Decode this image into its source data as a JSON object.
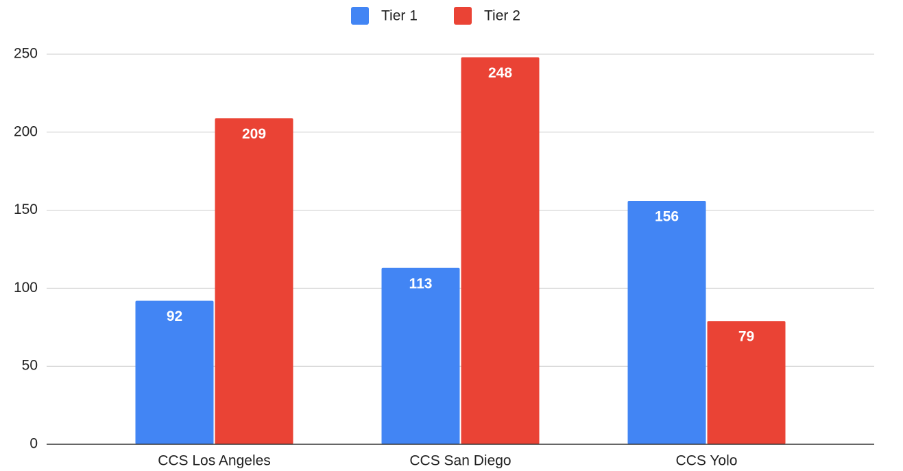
{
  "chart_data": {
    "type": "bar",
    "categories": [
      "CCS Los Angeles",
      "CCS San Diego",
      "CCS Yolo"
    ],
    "series": [
      {
        "name": "Tier 1",
        "color": "#4285f4",
        "values": [
          92,
          113,
          156
        ]
      },
      {
        "name": "Tier 2",
        "color": "#ea4335",
        "values": [
          209,
          248,
          79
        ]
      }
    ],
    "ylim": [
      0,
      250
    ],
    "yticks": [
      0,
      50,
      100,
      150,
      200,
      250
    ],
    "grid": true,
    "legend": "top"
  }
}
